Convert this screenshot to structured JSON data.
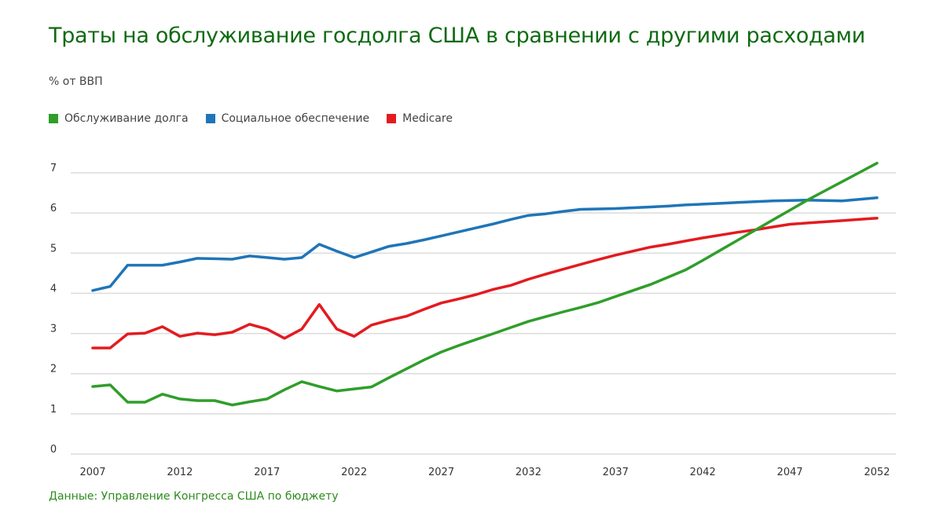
{
  "title": "Траты на обслуживание госдолга США в сравнении с другими расходами",
  "unit_label": "% от ВВП",
  "source": "Данные: Управление Конгресса США по бюджету",
  "chart_data": {
    "type": "line",
    "title": "Траты на обслуживание госдолга США в сравнении с другими расходами",
    "ylabel": "% от ВВП",
    "xlabel": "",
    "xlim": [
      2007,
      2052
    ],
    "ylim": [
      0,
      7
    ],
    "grid": true,
    "legend_placement": "top-left",
    "x_ticks": [
      2007,
      2012,
      2017,
      2022,
      2027,
      2032,
      2037,
      2042,
      2047,
      2052
    ],
    "y_ticks": [
      0,
      1,
      2,
      3,
      4,
      5,
      6,
      7
    ],
    "x": [
      2007,
      2008,
      2009,
      2010,
      2011,
      2012,
      2013,
      2014,
      2015,
      2016,
      2017,
      2018,
      2019,
      2020,
      2021,
      2022,
      2023,
      2024,
      2025,
      2026,
      2027,
      2028,
      2029,
      2030,
      2031,
      2032,
      2033,
      2034,
      2035,
      2036,
      2037,
      2038,
      2039,
      2040,
      2041,
      2042,
      2043,
      2044,
      2045,
      2046,
      2047,
      2048,
      2049,
      2050,
      2051,
      2052
    ],
    "series": [
      {
        "name": "Обслуживание долга",
        "color": "#2f9e2a",
        "values": [
          1.68,
          1.72,
          1.29,
          1.29,
          1.49,
          1.37,
          1.33,
          1.33,
          1.22,
          1.3,
          1.37,
          1.6,
          1.8,
          1.68,
          1.57,
          1.62,
          1.67,
          1.9,
          2.12,
          2.34,
          2.54,
          2.7,
          2.85,
          3.0,
          3.15,
          3.3,
          3.42,
          3.54,
          3.65,
          3.77,
          3.92,
          4.07,
          4.22,
          4.4,
          4.58,
          4.82,
          5.07,
          5.32,
          5.57,
          5.82,
          6.07,
          6.32,
          6.55,
          6.78,
          7.01,
          7.24
        ]
      },
      {
        "name": "Социальное обеспечение",
        "color": "#1f75b8",
        "values": [
          4.07,
          4.17,
          4.7,
          4.7,
          4.7,
          4.78,
          4.87,
          4.86,
          4.85,
          4.93,
          4.89,
          4.85,
          4.89,
          5.22,
          5.05,
          4.89,
          5.03,
          5.17,
          5.24,
          5.33,
          5.43,
          5.53,
          5.63,
          5.73,
          5.84,
          5.94,
          5.98,
          6.04,
          6.09,
          6.1,
          6.11,
          6.13,
          6.15,
          6.17,
          6.2,
          6.22,
          6.24,
          6.26,
          6.28,
          6.3,
          6.31,
          6.32,
          6.31,
          6.3,
          6.34,
          6.38
        ]
      },
      {
        "name": "Medicare",
        "color": "#e31b1f",
        "values": [
          2.64,
          2.64,
          2.99,
          3.01,
          3.17,
          2.93,
          3.01,
          2.97,
          3.03,
          3.23,
          3.11,
          2.88,
          3.11,
          3.72,
          3.11,
          2.93,
          3.21,
          3.33,
          3.43,
          3.6,
          3.76,
          3.86,
          3.97,
          4.1,
          4.2,
          4.35,
          4.48,
          4.6,
          4.72,
          4.84,
          4.95,
          5.05,
          5.15,
          5.22,
          5.3,
          5.38,
          5.45,
          5.52,
          5.58,
          5.65,
          5.72,
          5.75,
          5.78,
          5.81,
          5.84,
          5.87
        ]
      }
    ]
  }
}
